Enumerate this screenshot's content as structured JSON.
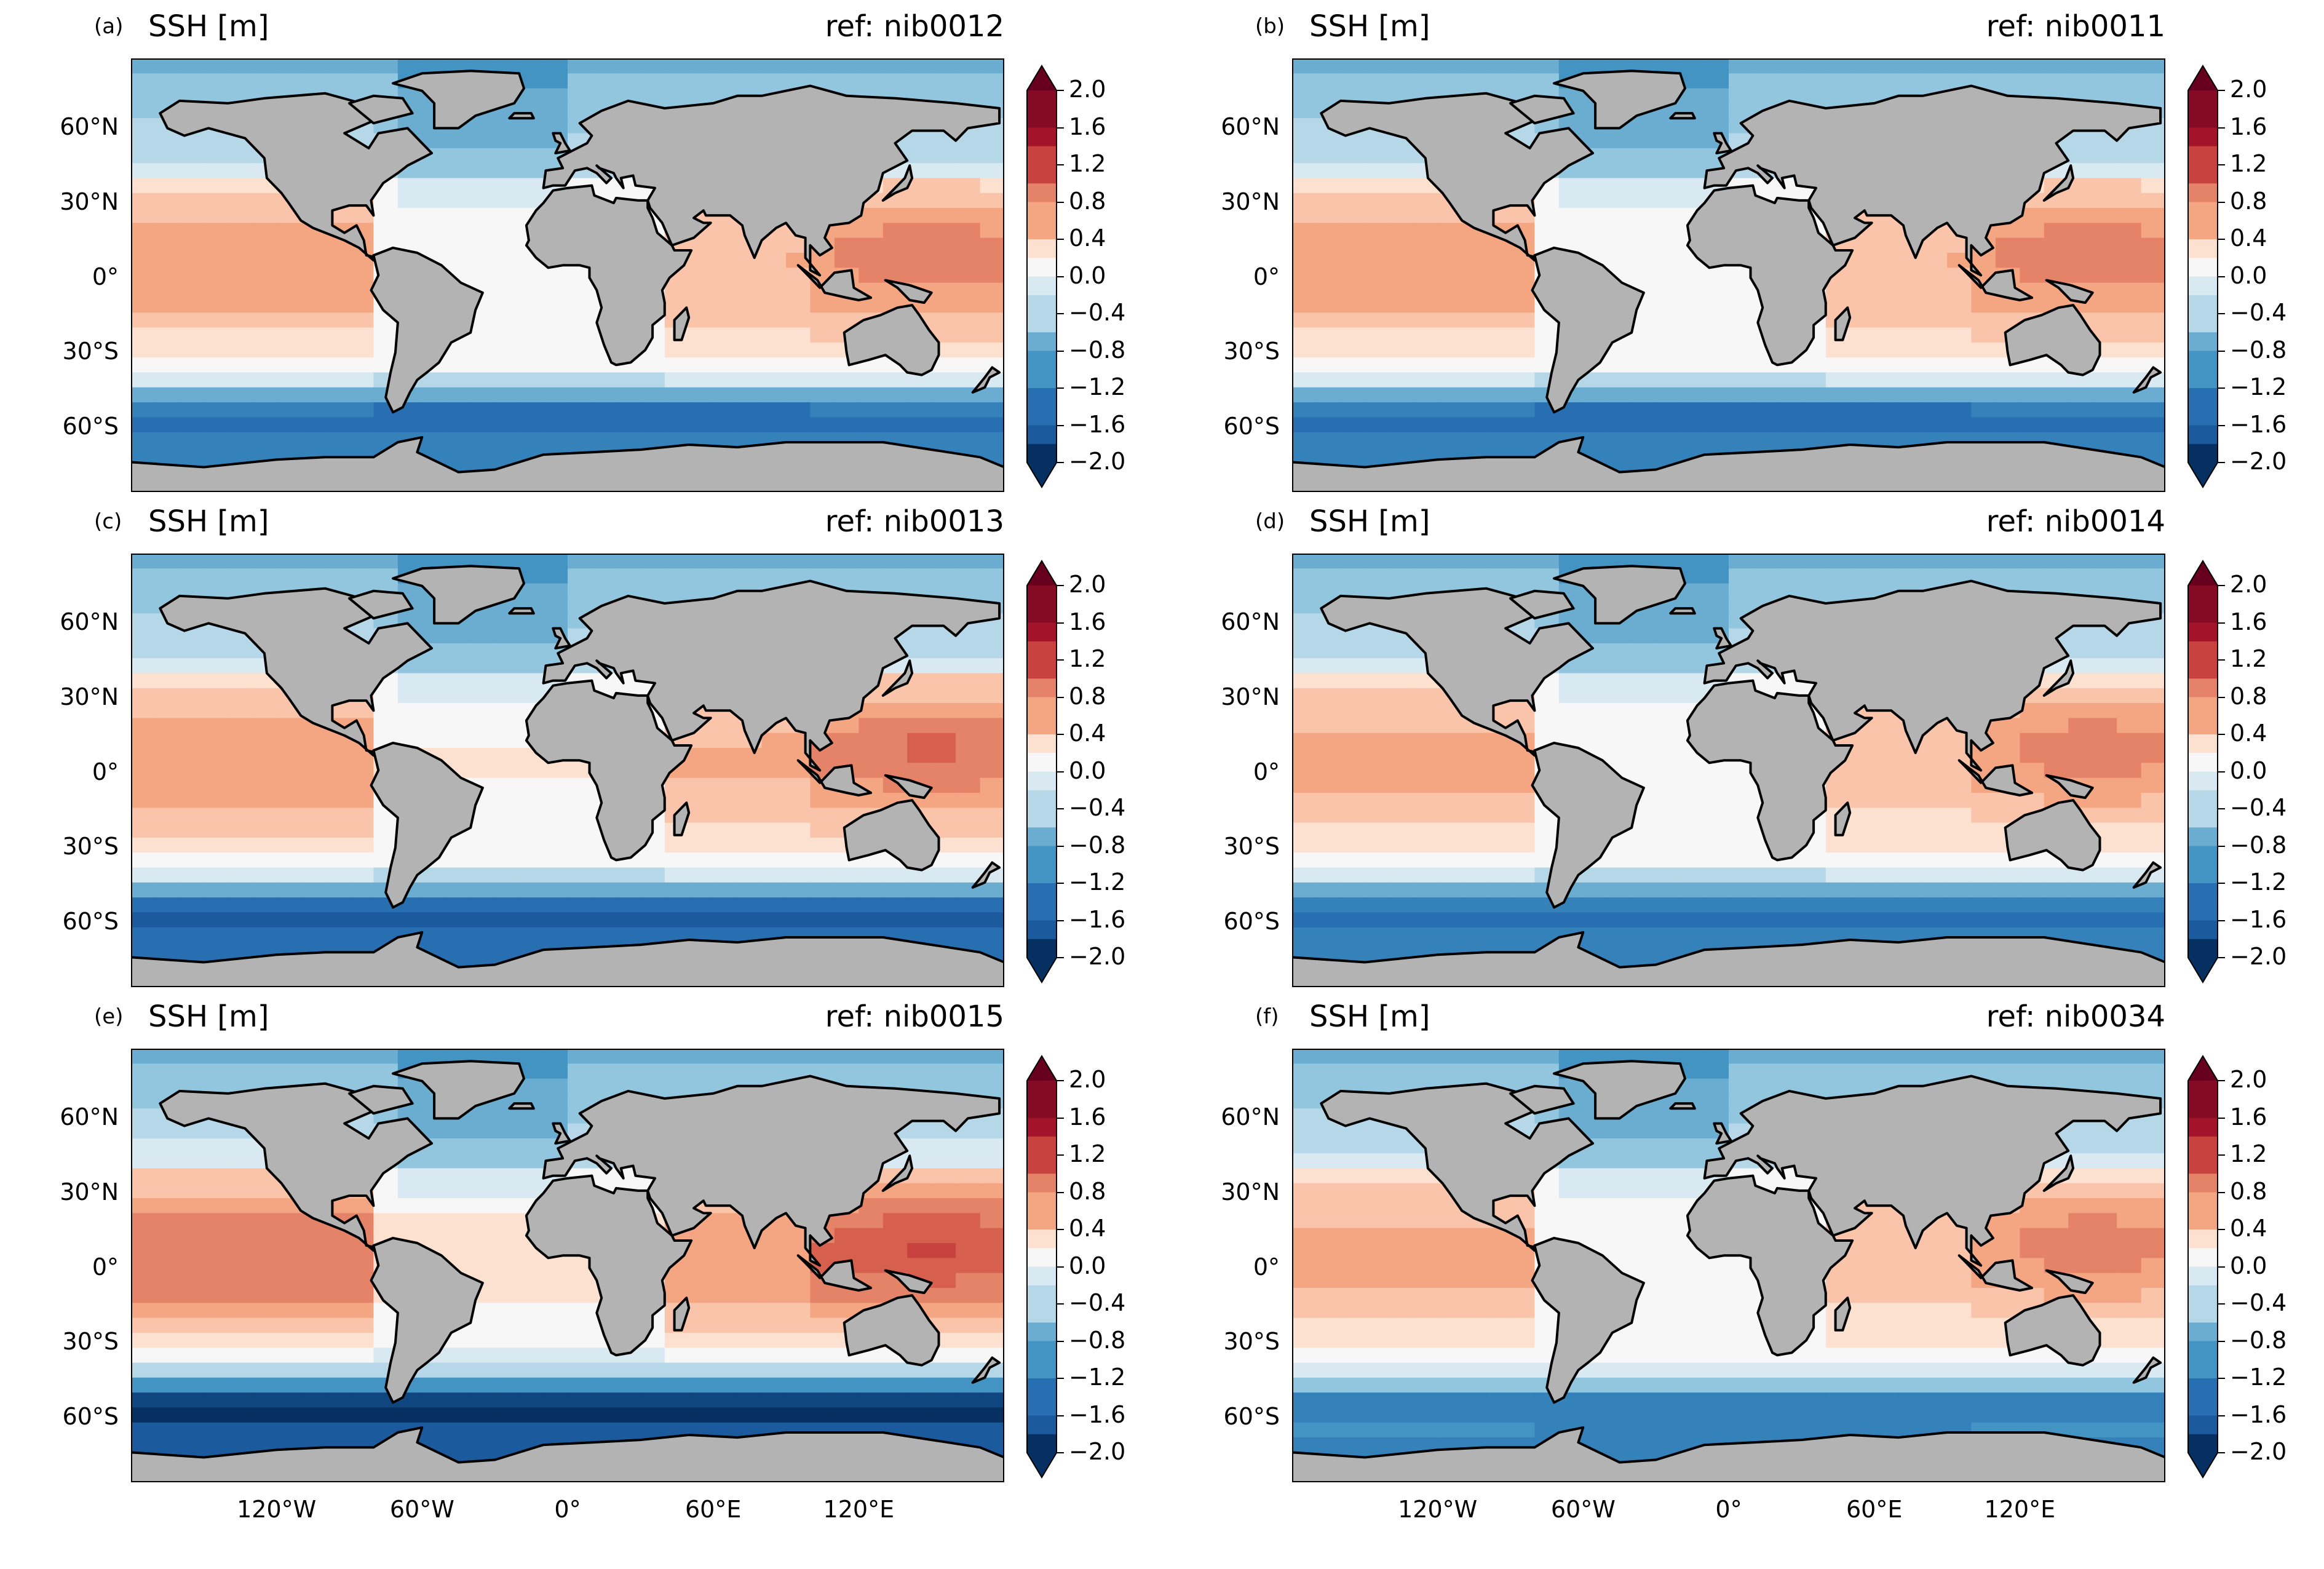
{
  "figure": {
    "variable_title": "SSH [m]",
    "colorbar_ticks": [
      "2.0",
      "1.6",
      "1.2",
      "0.8",
      "0.4",
      "0.0",
      "−0.4",
      "−0.8",
      "−1.2",
      "−1.6",
      "−2.0"
    ],
    "lat_ticks": [
      "60°N",
      "30°N",
      "0°",
      "30°S",
      "60°S"
    ],
    "lon_ticks": [
      "120°W",
      "60°W",
      "0°",
      "60°E",
      "120°E"
    ],
    "colors": {
      "land": "#b3b3b3",
      "coast": "#000000",
      "cmap_high": "#67001f",
      "cmap_mid": "#f7f7f7",
      "cmap_low": "#053061"
    }
  },
  "panels": [
    {
      "label": "(a)",
      "title": "SSH [m]",
      "ref": "ref: nib0012",
      "southern_ocean_level": -1.5,
      "pacific_level": 0.65
    },
    {
      "label": "(b)",
      "title": "SSH [m]",
      "ref": "ref: nib0011",
      "southern_ocean_level": -1.5,
      "pacific_level": 0.65
    },
    {
      "label": "(c)",
      "title": "SSH [m]",
      "ref": "ref: nib0013",
      "southern_ocean_level": -1.6,
      "pacific_level": 0.7
    },
    {
      "label": "(d)",
      "title": "SSH [m]",
      "ref": "ref: nib0014",
      "southern_ocean_level": -1.4,
      "pacific_level": 0.6
    },
    {
      "label": "(e)",
      "title": "SSH [m]",
      "ref": "ref: nib0015",
      "southern_ocean_level": -2.0,
      "pacific_level": 0.9
    },
    {
      "label": "(f)",
      "title": "SSH [m]",
      "ref": "ref: nib0034",
      "southern_ocean_level": -1.3,
      "pacific_level": 0.6
    }
  ]
}
